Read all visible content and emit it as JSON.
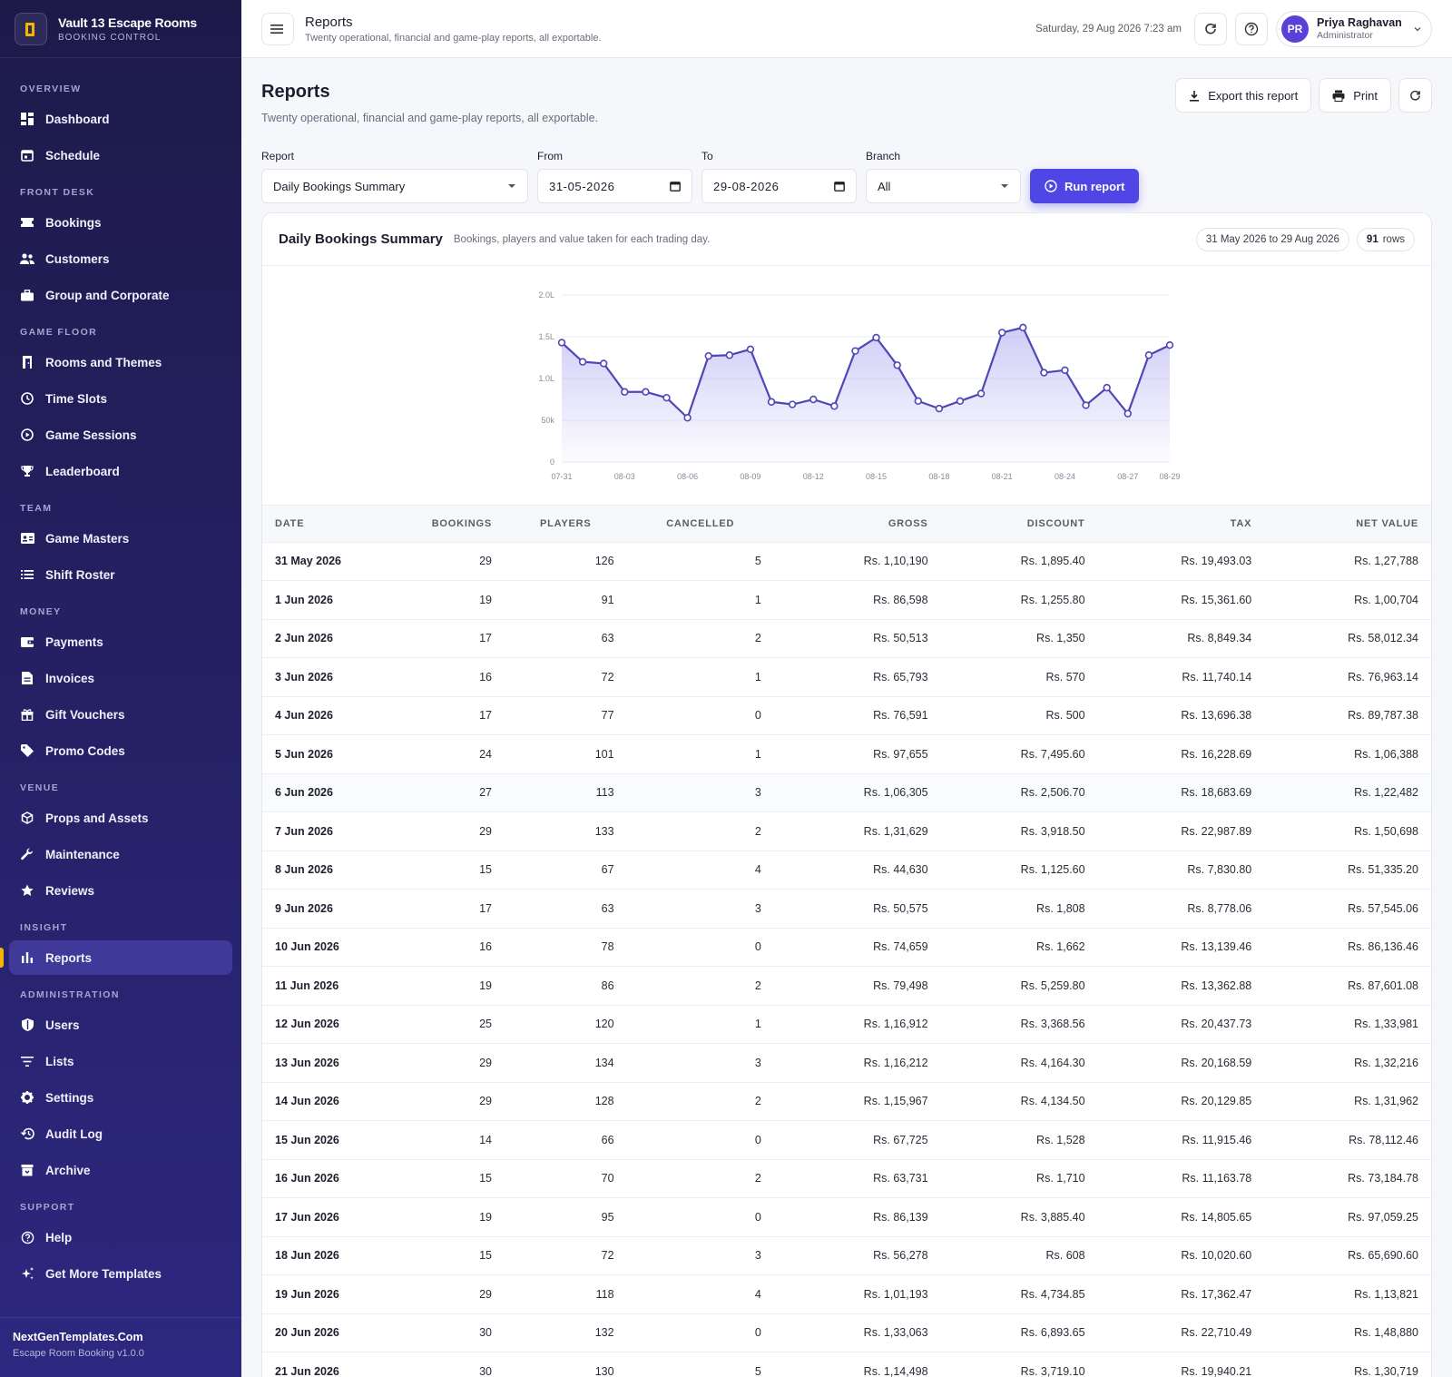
{
  "brand": {
    "title": "Vault 13 Escape Rooms",
    "subtitle": "BOOKING CONTROL"
  },
  "nav": {
    "sections": [
      {
        "title": "OVERVIEW",
        "items": [
          {
            "label": "Dashboard",
            "icon": "dashboard-icon"
          },
          {
            "label": "Schedule",
            "icon": "calendar-icon"
          }
        ]
      },
      {
        "title": "FRONT DESK",
        "items": [
          {
            "label": "Bookings",
            "icon": "ticket-icon"
          },
          {
            "label": "Customers",
            "icon": "people-icon"
          },
          {
            "label": "Group and Corporate",
            "icon": "briefcase-icon"
          }
        ]
      },
      {
        "title": "GAME FLOOR",
        "items": [
          {
            "label": "Rooms and Themes",
            "icon": "door-icon"
          },
          {
            "label": "Time Slots",
            "icon": "clock-icon"
          },
          {
            "label": "Game Sessions",
            "icon": "play-circle-icon"
          },
          {
            "label": "Leaderboard",
            "icon": "trophy-icon"
          }
        ]
      },
      {
        "title": "TEAM",
        "items": [
          {
            "label": "Game Masters",
            "icon": "id-card-icon"
          },
          {
            "label": "Shift Roster",
            "icon": "list-icon"
          }
        ]
      },
      {
        "title": "MONEY",
        "items": [
          {
            "label": "Payments",
            "icon": "wallet-icon"
          },
          {
            "label": "Invoices",
            "icon": "document-icon"
          },
          {
            "label": "Gift Vouchers",
            "icon": "gift-icon"
          },
          {
            "label": "Promo Codes",
            "icon": "tag-icon"
          }
        ]
      },
      {
        "title": "VENUE",
        "items": [
          {
            "label": "Props and Assets",
            "icon": "cube-icon"
          },
          {
            "label": "Maintenance",
            "icon": "wrench-icon"
          },
          {
            "label": "Reviews",
            "icon": "star-icon"
          }
        ]
      },
      {
        "title": "INSIGHT",
        "items": [
          {
            "label": "Reports",
            "icon": "bar-chart-icon",
            "active": true
          }
        ]
      },
      {
        "title": "ADMINISTRATION",
        "items": [
          {
            "label": "Users",
            "icon": "shield-icon"
          },
          {
            "label": "Lists",
            "icon": "filter-list-icon"
          },
          {
            "label": "Settings",
            "icon": "gear-icon"
          },
          {
            "label": "Audit Log",
            "icon": "history-icon"
          },
          {
            "label": "Archive",
            "icon": "archive-icon"
          }
        ]
      },
      {
        "title": "SUPPORT",
        "items": [
          {
            "label": "Help",
            "icon": "help-icon"
          },
          {
            "label": "Get More Templates",
            "icon": "sparkle-icon"
          }
        ]
      }
    ]
  },
  "footer": {
    "title": "NextGenTemplates.Com",
    "subtitle": "Escape Room Booking v1.0.0"
  },
  "topbar": {
    "title": "Reports",
    "subtitle": "Twenty operational, financial and game-play reports, all exportable.",
    "datetime": "Saturday, 29 Aug 2026 7:23 am",
    "user": {
      "initials": "PR",
      "name": "Priya Raghavan",
      "role": "Administrator"
    }
  },
  "page": {
    "title": "Reports",
    "subtitle": "Twenty operational, financial and game-play reports, all exportable.",
    "export_label": "Export this report",
    "print_label": "Print"
  },
  "filters": {
    "report_label": "Report",
    "report_value": "Daily Bookings Summary",
    "from_label": "From",
    "from_value": "31-05-2026",
    "to_label": "To",
    "to_value": "29-08-2026",
    "branch_label": "Branch",
    "branch_value": "All",
    "run_label": "Run report"
  },
  "report": {
    "title": "Daily Bookings Summary",
    "subtitle": "Bookings, players and value taken for each trading day.",
    "range": "31 May 2026 to 29 Aug 2026",
    "rows_count": "91",
    "rows_label": "rows"
  },
  "colors": {
    "accent": "#4f46e5",
    "sidebar": "#1d1a4a",
    "line": "#4f46b8",
    "active_marker": "#f4b400"
  },
  "chart_data": {
    "type": "area",
    "title": "",
    "xlabel": "",
    "ylabel": "",
    "y_ticks": [
      "0",
      "50k",
      "1.0L",
      "1.5L",
      "2.0L"
    ],
    "ylim": [
      0,
      200000
    ],
    "x_ticks": [
      "07-31",
      "08-03",
      "08-06",
      "08-09",
      "08-12",
      "08-15",
      "08-18",
      "08-21",
      "08-24",
      "08-27",
      "08-29"
    ],
    "x": [
      "07-31",
      "08-01",
      "08-02",
      "08-03",
      "08-04",
      "08-05",
      "08-06",
      "08-07",
      "08-08",
      "08-09",
      "08-10",
      "08-11",
      "08-12",
      "08-13",
      "08-14",
      "08-15",
      "08-16",
      "08-17",
      "08-18",
      "08-19",
      "08-20",
      "08-21",
      "08-22",
      "08-23",
      "08-24",
      "08-25",
      "08-26",
      "08-27",
      "08-28",
      "08-29"
    ],
    "values": [
      143000,
      120000,
      118000,
      84000,
      84000,
      77000,
      53000,
      127000,
      128000,
      135000,
      72000,
      69000,
      75000,
      67000,
      133000,
      149000,
      116000,
      73000,
      64000,
      73000,
      82000,
      155000,
      161000,
      107000,
      110000,
      68000,
      89000,
      58000,
      128000,
      140000
    ],
    "grid": true
  },
  "table": {
    "columns": [
      "DATE",
      "BOOKINGS",
      "PLAYERS",
      "CANCELLED",
      "GROSS",
      "DISCOUNT",
      "TAX",
      "NET VALUE"
    ],
    "rows": [
      [
        "31 May 2026",
        "29",
        "126",
        "5",
        "Rs. 1,10,190",
        "Rs. 1,895.40",
        "Rs. 19,493.03",
        "Rs. 1,27,788"
      ],
      [
        "1 Jun 2026",
        "19",
        "91",
        "1",
        "Rs. 86,598",
        "Rs. 1,255.80",
        "Rs. 15,361.60",
        "Rs. 1,00,704"
      ],
      [
        "2 Jun 2026",
        "17",
        "63",
        "2",
        "Rs. 50,513",
        "Rs. 1,350",
        "Rs. 8,849.34",
        "Rs. 58,012.34"
      ],
      [
        "3 Jun 2026",
        "16",
        "72",
        "1",
        "Rs. 65,793",
        "Rs. 570",
        "Rs. 11,740.14",
        "Rs. 76,963.14"
      ],
      [
        "4 Jun 2026",
        "17",
        "77",
        "0",
        "Rs. 76,591",
        "Rs. 500",
        "Rs. 13,696.38",
        "Rs. 89,787.38"
      ],
      [
        "5 Jun 2026",
        "24",
        "101",
        "1",
        "Rs. 97,655",
        "Rs. 7,495.60",
        "Rs. 16,228.69",
        "Rs. 1,06,388"
      ],
      [
        "6 Jun 2026",
        "27",
        "113",
        "3",
        "Rs. 1,06,305",
        "Rs. 2,506.70",
        "Rs. 18,683.69",
        "Rs. 1,22,482"
      ],
      [
        "7 Jun 2026",
        "29",
        "133",
        "2",
        "Rs. 1,31,629",
        "Rs. 3,918.50",
        "Rs. 22,987.89",
        "Rs. 1,50,698"
      ],
      [
        "8 Jun 2026",
        "15",
        "67",
        "4",
        "Rs. 44,630",
        "Rs. 1,125.60",
        "Rs. 7,830.80",
        "Rs. 51,335.20"
      ],
      [
        "9 Jun 2026",
        "17",
        "63",
        "3",
        "Rs. 50,575",
        "Rs. 1,808",
        "Rs. 8,778.06",
        "Rs. 57,545.06"
      ],
      [
        "10 Jun 2026",
        "16",
        "78",
        "0",
        "Rs. 74,659",
        "Rs. 1,662",
        "Rs. 13,139.46",
        "Rs. 86,136.46"
      ],
      [
        "11 Jun 2026",
        "19",
        "86",
        "2",
        "Rs. 79,498",
        "Rs. 5,259.80",
        "Rs. 13,362.88",
        "Rs. 87,601.08"
      ],
      [
        "12 Jun 2026",
        "25",
        "120",
        "1",
        "Rs. 1,16,912",
        "Rs. 3,368.56",
        "Rs. 20,437.73",
        "Rs. 1,33,981"
      ],
      [
        "13 Jun 2026",
        "29",
        "134",
        "3",
        "Rs. 1,16,212",
        "Rs. 4,164.30",
        "Rs. 20,168.59",
        "Rs. 1,32,216"
      ],
      [
        "14 Jun 2026",
        "29",
        "128",
        "2",
        "Rs. 1,15,967",
        "Rs. 4,134.50",
        "Rs. 20,129.85",
        "Rs. 1,31,962"
      ],
      [
        "15 Jun 2026",
        "14",
        "66",
        "0",
        "Rs. 67,725",
        "Rs. 1,528",
        "Rs. 11,915.46",
        "Rs. 78,112.46"
      ],
      [
        "16 Jun 2026",
        "15",
        "70",
        "2",
        "Rs. 63,731",
        "Rs. 1,710",
        "Rs. 11,163.78",
        "Rs. 73,184.78"
      ],
      [
        "17 Jun 2026",
        "19",
        "95",
        "0",
        "Rs. 86,139",
        "Rs. 3,885.40",
        "Rs. 14,805.65",
        "Rs. 97,059.25"
      ],
      [
        "18 Jun 2026",
        "15",
        "72",
        "3",
        "Rs. 56,278",
        "Rs. 608",
        "Rs. 10,020.60",
        "Rs. 65,690.60"
      ],
      [
        "19 Jun 2026",
        "29",
        "118",
        "4",
        "Rs. 1,01,193",
        "Rs. 4,734.85",
        "Rs. 17,362.47",
        "Rs. 1,13,821"
      ],
      [
        "20 Jun 2026",
        "30",
        "132",
        "0",
        "Rs. 1,33,063",
        "Rs. 6,893.65",
        "Rs. 22,710.49",
        "Rs. 1,48,880"
      ],
      [
        "21 Jun 2026",
        "30",
        "130",
        "5",
        "Rs. 1,14,498",
        "Rs. 3,719.10",
        "Rs. 19,940.21",
        "Rs. 1,30,719"
      ]
    ]
  }
}
